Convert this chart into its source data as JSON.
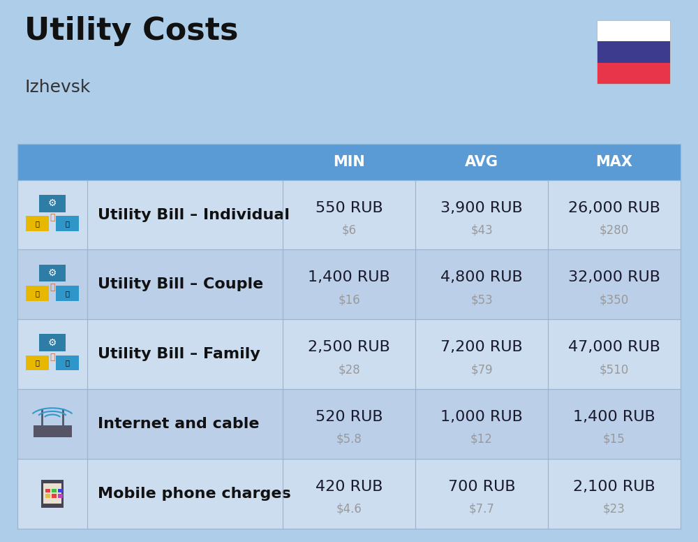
{
  "title": "Utility Costs",
  "subtitle": "Izhevsk",
  "background_color": "#aecde8",
  "header_bg_color": "#5b9bd5",
  "header_text_color": "#ffffff",
  "row_bg_color_1": "#cdddf0",
  "row_bg_color_2": "#bccfe8",
  "divider_color": "#90b8d8",
  "col_headers": [
    "MIN",
    "AVG",
    "MAX"
  ],
  "rows": [
    {
      "label": "Utility Bill – Individual",
      "min_rub": "550 RUB",
      "min_usd": "$6",
      "avg_rub": "3,900 RUB",
      "avg_usd": "$43",
      "max_rub": "26,000 RUB",
      "max_usd": "$280"
    },
    {
      "label": "Utility Bill – Couple",
      "min_rub": "1,400 RUB",
      "min_usd": "$16",
      "avg_rub": "4,800 RUB",
      "avg_usd": "$53",
      "max_rub": "32,000 RUB",
      "max_usd": "$350"
    },
    {
      "label": "Utility Bill – Family",
      "min_rub": "2,500 RUB",
      "min_usd": "$28",
      "avg_rub": "7,200 RUB",
      "avg_usd": "$79",
      "max_rub": "47,000 RUB",
      "max_usd": "$510"
    },
    {
      "label": "Internet and cable",
      "min_rub": "520 RUB",
      "min_usd": "$5.8",
      "avg_rub": "1,000 RUB",
      "avg_usd": "$12",
      "max_rub": "1,400 RUB",
      "max_usd": "$15"
    },
    {
      "label": "Mobile phone charges",
      "min_rub": "420 RUB",
      "min_usd": "$4.6",
      "avg_rub": "700 RUB",
      "avg_usd": "$7.7",
      "max_rub": "2,100 RUB",
      "max_usd": "$23"
    }
  ],
  "title_fontsize": 32,
  "subtitle_fontsize": 18,
  "header_fontsize": 15,
  "cell_rub_fontsize": 16,
  "cell_usd_fontsize": 12,
  "label_fontsize": 16,
  "flag_colors": [
    "#ffffff",
    "#3c3b8e",
    "#e8354a"
  ],
  "rub_text_color": "#1a1a2e",
  "usd_text_color": "#999999",
  "label_text_color": "#111111"
}
